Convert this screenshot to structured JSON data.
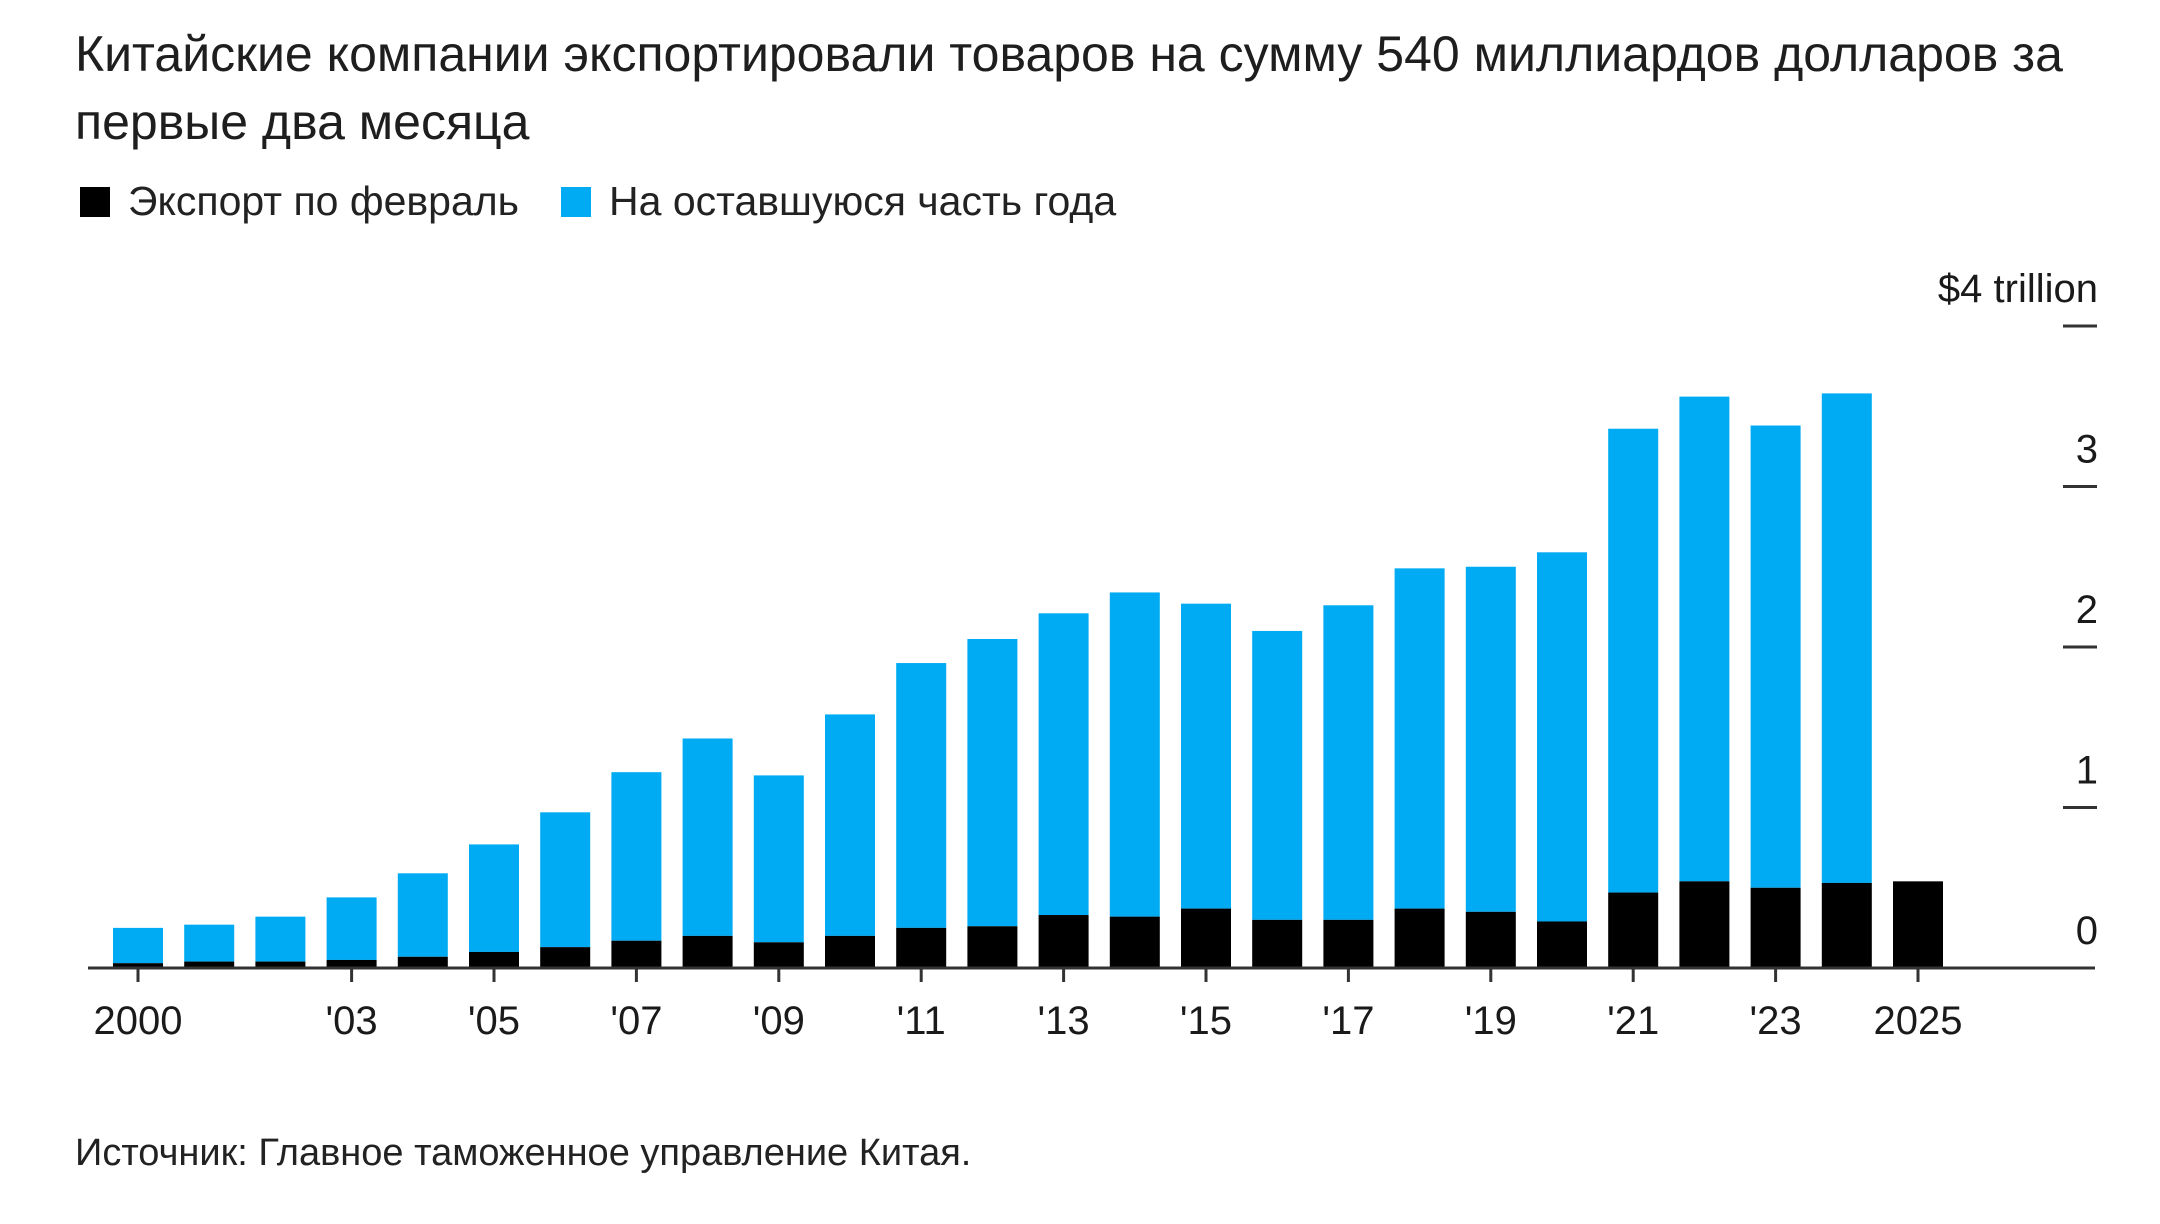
{
  "title": "Китайские компании экспортировали товаров на сумму 540 миллиардов долларов за первые два месяца",
  "source": "Источник: Главное таможенное управление Китая.",
  "colors": {
    "feb": "#000000",
    "rest": "#00abf3",
    "axis": "#333333",
    "bg": "#ffffff"
  },
  "chart_data": {
    "type": "bar",
    "stacked": true,
    "title": "Китайские компании экспортировали товаров на сумму 540 миллиардов долларов за первые два месяца",
    "legend_position": "top-left",
    "series": [
      {
        "name": "Экспорт по февраль",
        "color": "#000000"
      },
      {
        "name": "На оставшуюся часть года",
        "color": "#00abf3"
      }
    ],
    "x": [
      2000,
      2001,
      2002,
      2003,
      2004,
      2005,
      2006,
      2007,
      2008,
      2009,
      2010,
      2011,
      2012,
      2013,
      2014,
      2015,
      2016,
      2017,
      2018,
      2019,
      2020,
      2021,
      2022,
      2023,
      2024,
      2025
    ],
    "feb_values": [
      0.03,
      0.04,
      0.04,
      0.05,
      0.07,
      0.1,
      0.13,
      0.17,
      0.2,
      0.16,
      0.2,
      0.25,
      0.26,
      0.33,
      0.32,
      0.37,
      0.3,
      0.3,
      0.37,
      0.35,
      0.29,
      0.47,
      0.54,
      0.5,
      0.53,
      0.54
    ],
    "total_values": [
      0.25,
      0.27,
      0.32,
      0.44,
      0.59,
      0.77,
      0.97,
      1.22,
      1.43,
      1.2,
      1.58,
      1.9,
      2.05,
      2.21,
      2.34,
      2.27,
      2.1,
      2.26,
      2.49,
      2.5,
      2.59,
      3.36,
      3.56,
      3.38,
      3.58,
      0.54
    ],
    "xticks": [
      "2000",
      "'03",
      "'05",
      "'07",
      "'09",
      "'11",
      "'13",
      "'15",
      "'17",
      "'19",
      "'21",
      "'23",
      "2025"
    ],
    "xtick_years": [
      2000,
      2003,
      2005,
      2007,
      2009,
      2011,
      2013,
      2015,
      2017,
      2019,
      2021,
      2023,
      2025
    ],
    "yticks": [
      "0",
      "1",
      "2",
      "3",
      "$4 trillion"
    ],
    "ytick_values": [
      0,
      1,
      2,
      3,
      4
    ],
    "ylim": [
      0,
      4
    ],
    "grid": false,
    "y_axis_side": "right"
  }
}
